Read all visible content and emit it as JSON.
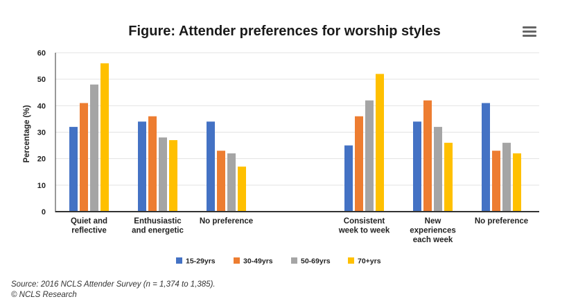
{
  "header": {
    "title": "Figure: Attender preferences for worship styles",
    "menu_icon": "hamburger-menu-icon"
  },
  "chart_data": {
    "type": "bar",
    "title": "Figure: Attender preferences for worship styles",
    "ylabel": "Percentage (%)",
    "xlabel": "",
    "ylim": [
      0,
      60
    ],
    "yticks": [
      "0",
      "10",
      "20",
      "30",
      "40",
      "50",
      "60"
    ],
    "grid": true,
    "legend_position": "bottom",
    "categories": [
      [
        "Quiet and",
        "reflective"
      ],
      [
        "Enthusiastic",
        "and energetic"
      ],
      [
        "No preference"
      ],
      [
        "Consistent",
        "week to week"
      ],
      [
        "New",
        "experiences",
        "each week"
      ],
      [
        "No preference"
      ]
    ],
    "series": [
      {
        "name": "15-29yrs",
        "color": "#4472c4",
        "values": [
          32,
          34,
          34,
          25,
          34,
          41
        ]
      },
      {
        "name": "30-49yrs",
        "color": "#ed7d31",
        "values": [
          41,
          36,
          23,
          36,
          42,
          23
        ]
      },
      {
        "name": "50-69yrs",
        "color": "#a5a5a5",
        "values": [
          48,
          28,
          22,
          42,
          32,
          26
        ]
      },
      {
        "name": "70+yrs",
        "color": "#ffc000",
        "values": [
          56,
          27,
          17,
          52,
          26,
          22
        ]
      }
    ]
  },
  "footer": {
    "source": "Source: 2016 NCLS Attender Survey (n = 1,374 to 1,385).",
    "copyright": "© NCLS Research"
  }
}
